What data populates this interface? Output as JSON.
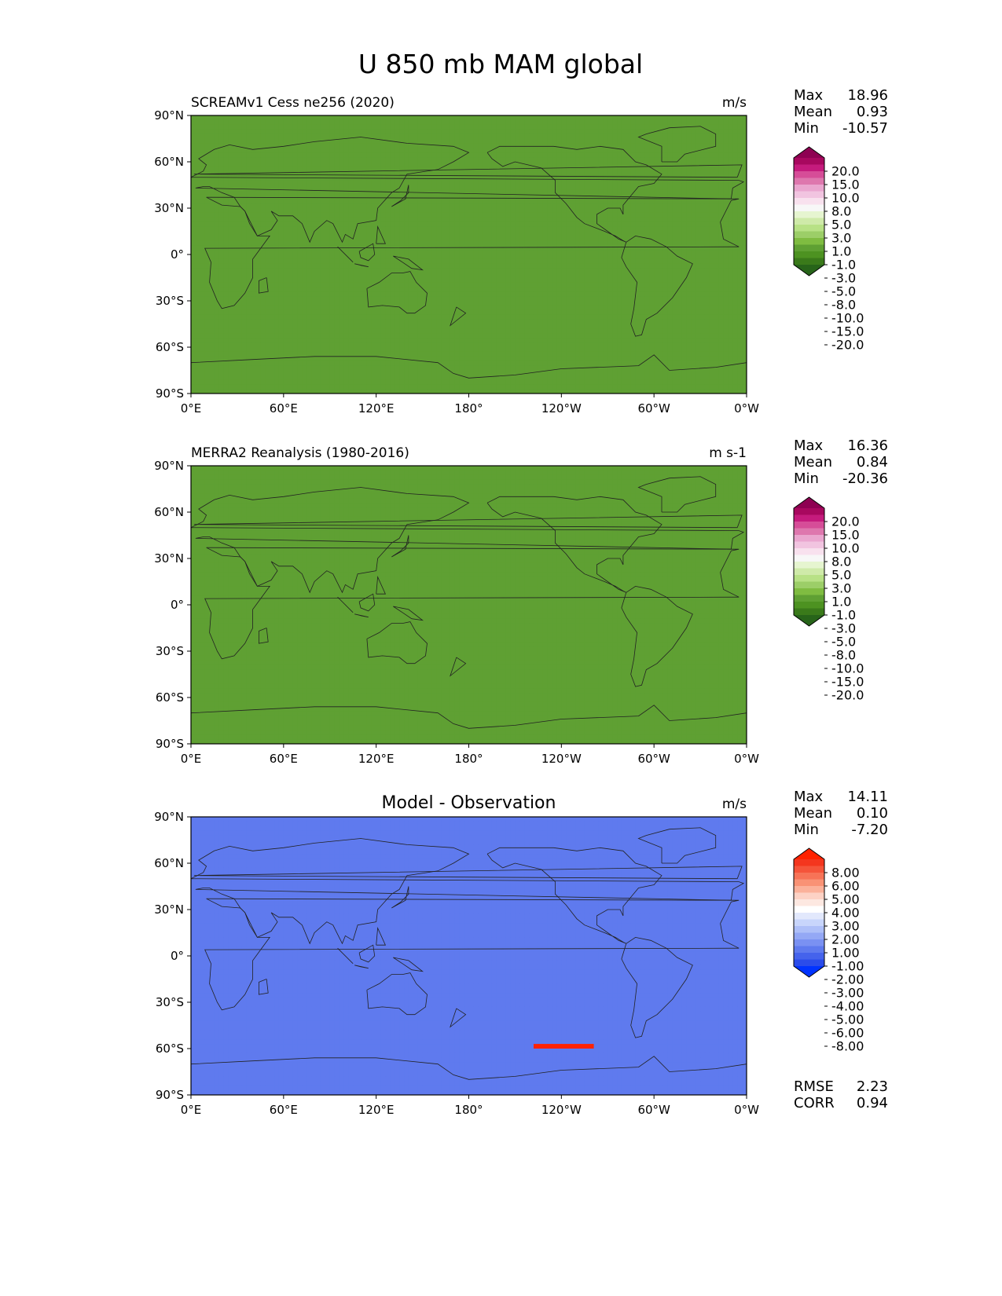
{
  "title": "U 850 mb MAM global",
  "chart_data": [
    {
      "type": "heatmap",
      "title": "SCREAMv1 Cess ne256 (2020)",
      "units": "m/s",
      "stats": [
        {
          "label": "Max",
          "value": "18.96"
        },
        {
          "label": "Mean",
          "value": "0.93"
        },
        {
          "label": "Min",
          "value": "-10.57"
        }
      ],
      "x_ticks": [
        "0°E",
        "60°E",
        "120°E",
        "180°",
        "120°W",
        "60°W",
        "0°W"
      ],
      "y_ticks": [
        "90°N",
        "60°N",
        "30°N",
        "0°",
        "30°S",
        "60°S",
        "90°S"
      ],
      "xlim": [
        0,
        360
      ],
      "ylim": [
        -90,
        90
      ],
      "colorbar_labels": [
        "20.0",
        "15.0",
        "10.0",
        "8.0",
        "5.0",
        "3.0",
        "1.0",
        "-1.0",
        "-3.0",
        "-5.0",
        "-8.0",
        "-10.0",
        "-15.0",
        "-20.0"
      ],
      "colorbar_colors": [
        "#8e0152",
        "#a8085f",
        "#c51b7d",
        "#d64d98",
        "#de77ae",
        "#eaa6cf",
        "#f1c4e0",
        "#f8e1ee",
        "#f7f7f7",
        "#e6f5d0",
        "#cfeaa9",
        "#b8e186",
        "#9cce68",
        "#7fbc41",
        "#5fa033",
        "#4d9221",
        "#3a7a1a",
        "#276419"
      ]
    },
    {
      "type": "heatmap",
      "title": "MERRA2 Reanalysis (1980-2016)",
      "units": "m s-1",
      "stats": [
        {
          "label": "Max",
          "value": "16.36"
        },
        {
          "label": "Mean",
          "value": "0.84"
        },
        {
          "label": "Min",
          "value": "-20.36"
        }
      ],
      "x_ticks": [
        "0°E",
        "60°E",
        "120°E",
        "180°",
        "120°W",
        "60°W",
        "0°W"
      ],
      "y_ticks": [
        "90°N",
        "60°N",
        "30°N",
        "0°",
        "30°S",
        "60°S",
        "90°S"
      ],
      "xlim": [
        0,
        360
      ],
      "ylim": [
        -90,
        90
      ],
      "colorbar_labels": [
        "20.0",
        "15.0",
        "10.0",
        "8.0",
        "5.0",
        "3.0",
        "1.0",
        "-1.0",
        "-3.0",
        "-5.0",
        "-8.0",
        "-10.0",
        "-15.0",
        "-20.0"
      ],
      "colorbar_colors": [
        "#8e0152",
        "#a8085f",
        "#c51b7d",
        "#d64d98",
        "#de77ae",
        "#eaa6cf",
        "#f1c4e0",
        "#f8e1ee",
        "#f7f7f7",
        "#e6f5d0",
        "#cfeaa9",
        "#b8e186",
        "#9cce68",
        "#7fbc41",
        "#5fa033",
        "#4d9221",
        "#3a7a1a",
        "#276419"
      ]
    },
    {
      "type": "heatmap",
      "title": "Model - Observation",
      "units": "m/s",
      "stats": [
        {
          "label": "Max",
          "value": "14.11"
        },
        {
          "label": "Mean",
          "value": "0.10"
        },
        {
          "label": "Min",
          "value": "-7.20"
        }
      ],
      "extra_stats": [
        {
          "label": "RMSE",
          "value": "2.23"
        },
        {
          "label": "CORR",
          "value": "0.94"
        }
      ],
      "x_ticks": [
        "0°E",
        "60°E",
        "120°E",
        "180°",
        "120°W",
        "60°W",
        "0°W"
      ],
      "y_ticks": [
        "90°N",
        "60°N",
        "30°N",
        "0°",
        "30°S",
        "60°S",
        "90°S"
      ],
      "xlim": [
        0,
        360
      ],
      "ylim": [
        -90,
        90
      ],
      "colorbar_labels": [
        "8.00",
        "6.00",
        "5.00",
        "4.00",
        "3.00",
        "2.00",
        "1.00",
        "-1.00",
        "-2.00",
        "-3.00",
        "-4.00",
        "-5.00",
        "-6.00",
        "-8.00"
      ],
      "colorbar_colors": [
        "#ff2200",
        "#f4361e",
        "#f5543a",
        "#f77357",
        "#f99275",
        "#fbb19a",
        "#fdd2c5",
        "#fde8e1",
        "#ffffff",
        "#e2e8fc",
        "#c8d5fb",
        "#aebff8",
        "#94a8f5",
        "#7a91f2",
        "#5f7aee",
        "#4563ec",
        "#2b4cea",
        "#0033ff"
      ]
    }
  ]
}
